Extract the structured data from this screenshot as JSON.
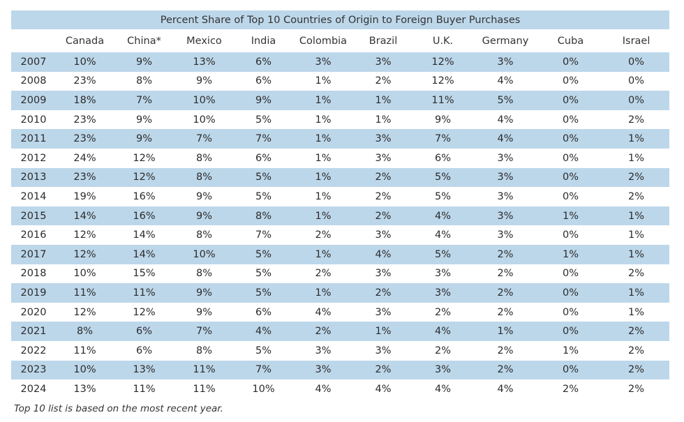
{
  "chart_data": {
    "type": "table",
    "title": "Percent Share of Top 10 Countries of Origin to Foreign Buyer Purchases",
    "columns": [
      "Canada",
      "China*",
      "Mexico",
      "India",
      "Colombia",
      "Brazil",
      "U.K.",
      "Germany",
      "Cuba",
      "Israel"
    ],
    "rows": [
      {
        "year": "2007",
        "values": [
          "10%",
          "9%",
          "13%",
          "6%",
          "3%",
          "3%",
          "12%",
          "3%",
          "0%",
          "0%"
        ]
      },
      {
        "year": "2008",
        "values": [
          "23%",
          "8%",
          "9%",
          "6%",
          "1%",
          "2%",
          "12%",
          "4%",
          "0%",
          "0%"
        ]
      },
      {
        "year": "2009",
        "values": [
          "18%",
          "7%",
          "10%",
          "9%",
          "1%",
          "1%",
          "11%",
          "5%",
          "0%",
          "0%"
        ]
      },
      {
        "year": "2010",
        "values": [
          "23%",
          "9%",
          "10%",
          "5%",
          "1%",
          "1%",
          "9%",
          "4%",
          "0%",
          "2%"
        ]
      },
      {
        "year": "2011",
        "values": [
          "23%",
          "9%",
          "7%",
          "7%",
          "1%",
          "3%",
          "7%",
          "4%",
          "0%",
          "1%"
        ]
      },
      {
        "year": "2012",
        "values": [
          "24%",
          "12%",
          "8%",
          "6%",
          "1%",
          "3%",
          "6%",
          "3%",
          "0%",
          "1%"
        ]
      },
      {
        "year": "2013",
        "values": [
          "23%",
          "12%",
          "8%",
          "5%",
          "1%",
          "2%",
          "5%",
          "3%",
          "0%",
          "2%"
        ]
      },
      {
        "year": "2014",
        "values": [
          "19%",
          "16%",
          "9%",
          "5%",
          "1%",
          "2%",
          "5%",
          "3%",
          "0%",
          "2%"
        ]
      },
      {
        "year": "2015",
        "values": [
          "14%",
          "16%",
          "9%",
          "8%",
          "1%",
          "2%",
          "4%",
          "3%",
          "1%",
          "1%"
        ]
      },
      {
        "year": "2016",
        "values": [
          "12%",
          "14%",
          "8%",
          "7%",
          "2%",
          "3%",
          "4%",
          "3%",
          "0%",
          "1%"
        ]
      },
      {
        "year": "2017",
        "values": [
          "12%",
          "14%",
          "10%",
          "5%",
          "1%",
          "4%",
          "5%",
          "2%",
          "1%",
          "1%"
        ]
      },
      {
        "year": "2018",
        "values": [
          "10%",
          "15%",
          "8%",
          "5%",
          "2%",
          "3%",
          "3%",
          "2%",
          "0%",
          "2%"
        ]
      },
      {
        "year": "2019",
        "values": [
          "11%",
          "11%",
          "9%",
          "5%",
          "1%",
          "2%",
          "3%",
          "2%",
          "0%",
          "1%"
        ]
      },
      {
        "year": "2020",
        "values": [
          "12%",
          "12%",
          "9%",
          "6%",
          "4%",
          "3%",
          "2%",
          "2%",
          "0%",
          "1%"
        ]
      },
      {
        "year": "2021",
        "values": [
          "8%",
          "6%",
          "7%",
          "4%",
          "2%",
          "1%",
          "4%",
          "1%",
          "0%",
          "2%"
        ]
      },
      {
        "year": "2022",
        "values": [
          "11%",
          "6%",
          "8%",
          "5%",
          "3%",
          "3%",
          "2%",
          "2%",
          "1%",
          "2%"
        ]
      },
      {
        "year": "2023",
        "values": [
          "10%",
          "13%",
          "11%",
          "7%",
          "3%",
          "2%",
          "3%",
          "2%",
          "0%",
          "2%"
        ]
      },
      {
        "year": "2024",
        "values": [
          "13%",
          "11%",
          "11%",
          "10%",
          "4%",
          "4%",
          "4%",
          "4%",
          "2%",
          "2%"
        ]
      }
    ],
    "footnote": "Top 10 list is based on the most recent year.",
    "colors": {
      "band": "#bdd7ea",
      "text": "#2b2b2b"
    }
  }
}
